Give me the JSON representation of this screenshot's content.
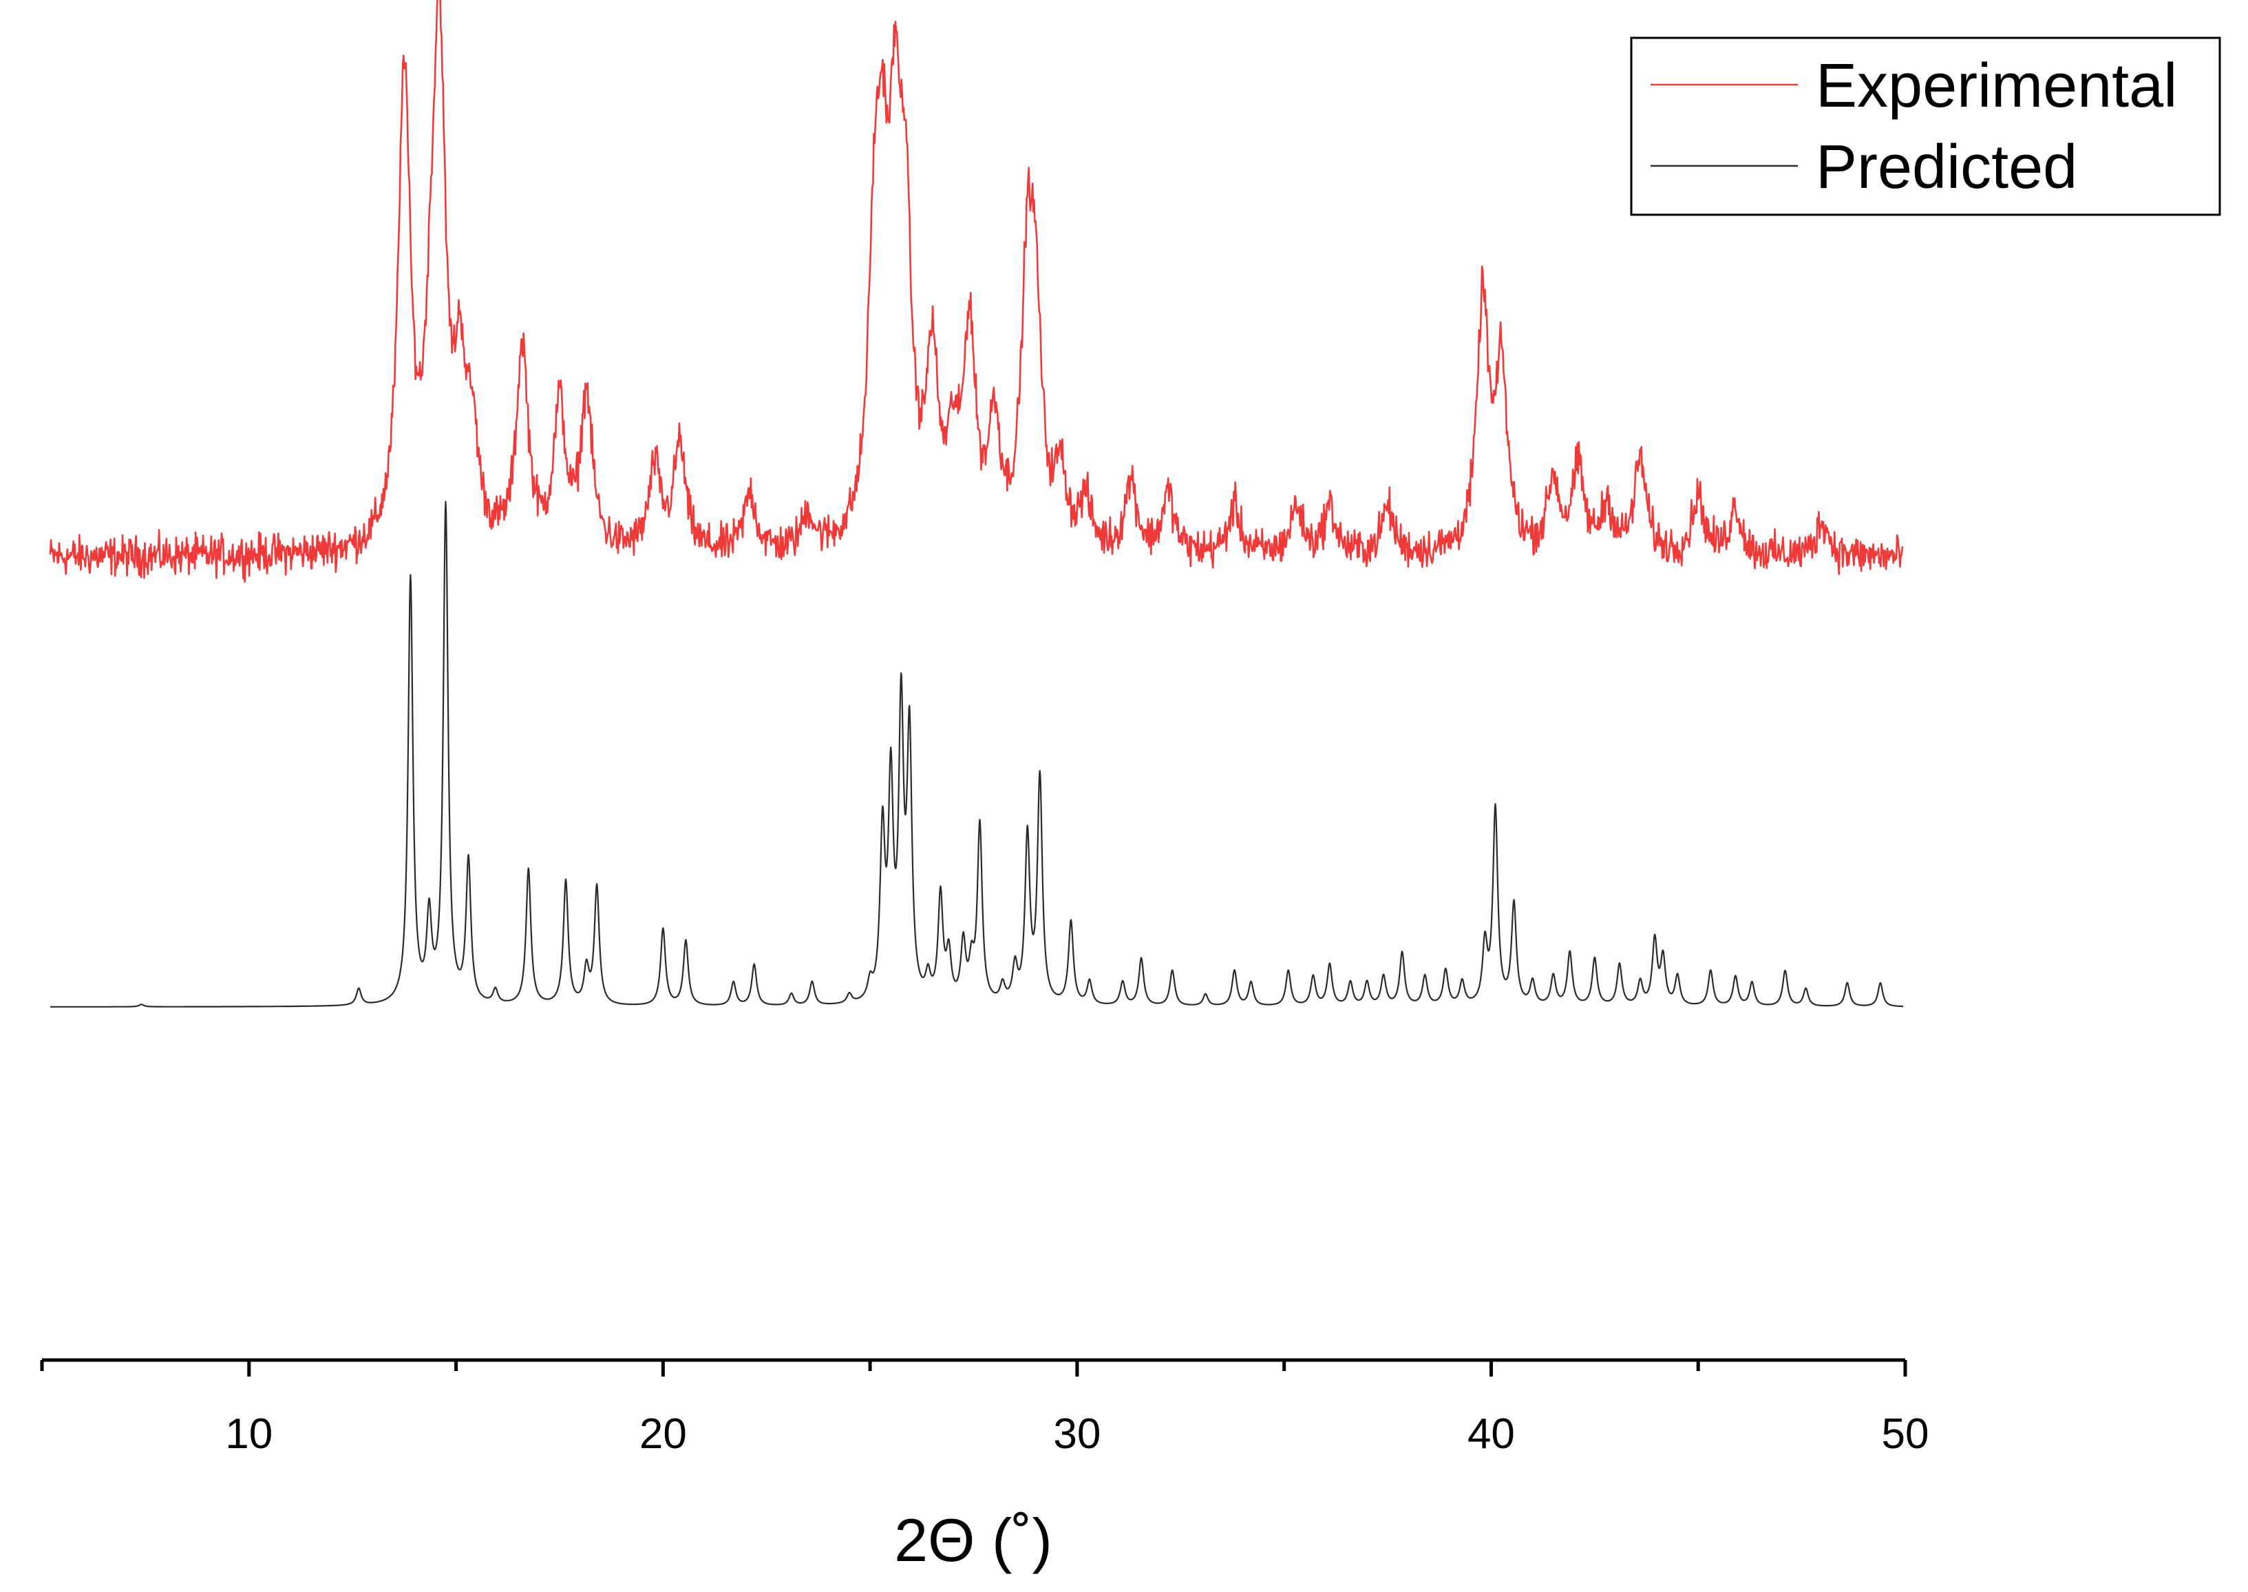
{
  "chart_data": {
    "type": "line",
    "xlabel": "2Θ (˚)",
    "ylabel": "",
    "xlim": [
      5,
      50
    ],
    "ylim": [
      0,
      1
    ],
    "x_ticks": [
      10,
      20,
      30,
      40,
      50
    ],
    "x_minor_tick_step": 5,
    "y_axis_visible": false,
    "grid": false,
    "legend_position": "top-right",
    "series": [
      {
        "name": "Experimental",
        "color": "#f03a3a",
        "baseline": 0.605,
        "noise": 0.018,
        "peak_width": 0.17,
        "peaks": [
          [
            13.75,
            0.4
          ],
          [
            14.6,
            0.4
          ],
          [
            14.4,
            0.12
          ],
          [
            15.1,
            0.13
          ],
          [
            15.4,
            0.08
          ],
          [
            16.6,
            0.17
          ],
          [
            17.5,
            0.12
          ],
          [
            18.15,
            0.13
          ],
          [
            19.8,
            0.07
          ],
          [
            20.4,
            0.09
          ],
          [
            22.1,
            0.05
          ],
          [
            23.5,
            0.03
          ],
          [
            25.1,
            0.21
          ],
          [
            25.3,
            0.23
          ],
          [
            25.6,
            0.28
          ],
          [
            25.85,
            0.24
          ],
          [
            26.5,
            0.15
          ],
          [
            27.0,
            0.07
          ],
          [
            27.4,
            0.18
          ],
          [
            28.0,
            0.1
          ],
          [
            28.8,
            0.22
          ],
          [
            29.0,
            0.17
          ],
          [
            29.6,
            0.06
          ],
          [
            30.2,
            0.04
          ],
          [
            31.3,
            0.06
          ],
          [
            32.2,
            0.05
          ],
          [
            33.8,
            0.04
          ],
          [
            35.3,
            0.04
          ],
          [
            36.1,
            0.04
          ],
          [
            37.5,
            0.04
          ],
          [
            39.8,
            0.21
          ],
          [
            40.25,
            0.15
          ],
          [
            41.5,
            0.06
          ],
          [
            42.1,
            0.07
          ],
          [
            42.8,
            0.04
          ],
          [
            43.6,
            0.08
          ],
          [
            45.0,
            0.05
          ],
          [
            45.9,
            0.04
          ],
          [
            48.0,
            0.03
          ]
        ]
      },
      {
        "name": "Predicted",
        "color": "#2b2b2b",
        "baseline": 0.225,
        "noise": 0,
        "peak_width": 0.07,
        "peaks": [
          [
            7.4,
            0.002
          ],
          [
            12.65,
            0.014
          ],
          [
            13.9,
            0.36
          ],
          [
            14.35,
            0.07
          ],
          [
            14.75,
            0.42
          ],
          [
            15.3,
            0.12
          ],
          [
            15.95,
            0.012
          ],
          [
            16.75,
            0.115
          ],
          [
            17.65,
            0.105
          ],
          [
            18.15,
            0.03
          ],
          [
            18.4,
            0.1
          ],
          [
            20.0,
            0.065
          ],
          [
            20.55,
            0.055
          ],
          [
            21.7,
            0.02
          ],
          [
            22.2,
            0.035
          ],
          [
            23.1,
            0.01
          ],
          [
            23.6,
            0.02
          ],
          [
            24.5,
            0.008
          ],
          [
            25.0,
            0.015
          ],
          [
            25.3,
            0.14
          ],
          [
            25.5,
            0.18
          ],
          [
            25.75,
            0.24
          ],
          [
            25.95,
            0.22
          ],
          [
            26.4,
            0.02
          ],
          [
            26.7,
            0.09
          ],
          [
            26.9,
            0.04
          ],
          [
            27.25,
            0.05
          ],
          [
            27.45,
            0.03
          ],
          [
            27.65,
            0.15
          ],
          [
            28.2,
            0.015
          ],
          [
            28.5,
            0.03
          ],
          [
            28.8,
            0.14
          ],
          [
            29.1,
            0.19
          ],
          [
            29.85,
            0.07
          ],
          [
            30.3,
            0.02
          ],
          [
            31.1,
            0.02
          ],
          [
            31.55,
            0.04
          ],
          [
            32.3,
            0.03
          ],
          [
            33.1,
            0.01
          ],
          [
            33.8,
            0.03
          ],
          [
            34.2,
            0.02
          ],
          [
            35.1,
            0.03
          ],
          [
            35.7,
            0.025
          ],
          [
            36.1,
            0.035
          ],
          [
            36.6,
            0.02
          ],
          [
            37.0,
            0.02
          ],
          [
            37.4,
            0.025
          ],
          [
            37.85,
            0.045
          ],
          [
            38.4,
            0.025
          ],
          [
            38.9,
            0.03
          ],
          [
            39.3,
            0.02
          ],
          [
            39.85,
            0.05
          ],
          [
            40.1,
            0.165
          ],
          [
            40.55,
            0.085
          ],
          [
            41.0,
            0.02
          ],
          [
            41.5,
            0.025
          ],
          [
            41.9,
            0.045
          ],
          [
            42.5,
            0.04
          ],
          [
            43.1,
            0.035
          ],
          [
            43.6,
            0.02
          ],
          [
            43.95,
            0.055
          ],
          [
            44.15,
            0.04
          ],
          [
            44.5,
            0.025
          ],
          [
            45.3,
            0.03
          ],
          [
            45.9,
            0.025
          ],
          [
            46.3,
            0.02
          ],
          [
            47.1,
            0.03
          ],
          [
            47.6,
            0.015
          ],
          [
            48.6,
            0.02
          ],
          [
            49.4,
            0.02
          ]
        ]
      }
    ]
  }
}
